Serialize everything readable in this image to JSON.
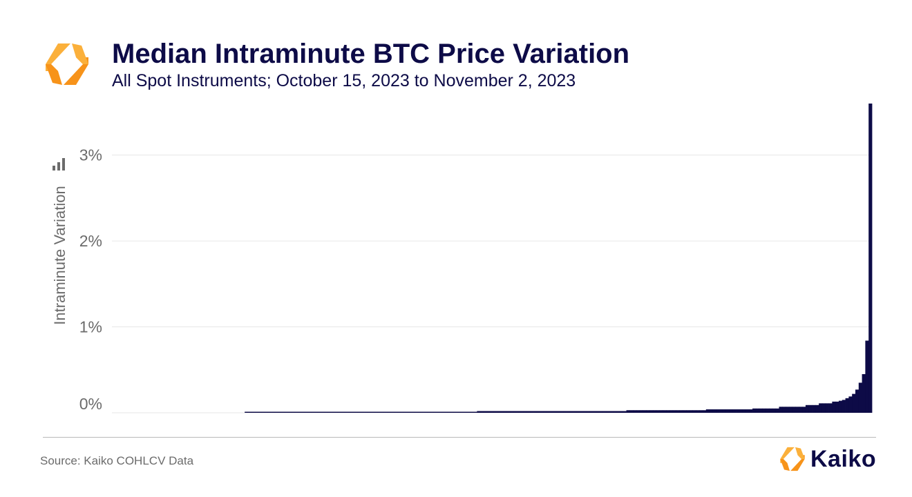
{
  "header": {
    "title": "Median Intraminute BTC Price Variation",
    "subtitle": "All Spot Instruments; October 15, 2023 to November 2, 2023"
  },
  "footer": {
    "source": "Source: Kaiko COHLCV Data",
    "brand": "Kaiko"
  },
  "icons": {
    "header_logo": "kaiko-logo-icon",
    "chart_menu": "bar-chart-icon",
    "brand_logo": "kaiko-logo-icon"
  },
  "colors": {
    "bars": "#0d0b47",
    "title": "#0d0b47",
    "logo_orange": "#f7931a",
    "logo_yellow": "#fbb03b"
  },
  "chart_data": {
    "type": "bar",
    "title": "Median Intraminute BTC Price Variation",
    "subtitle": "All Spot Instruments; October 15, 2023 to November 2, 2023",
    "xlabel": "",
    "ylabel": "Intraminute Variation",
    "ylim": [
      0,
      3.6
    ],
    "y_ticks": [
      0,
      1,
      2,
      3
    ],
    "y_tick_labels": [
      "0%",
      "1%",
      "2%",
      "3%"
    ],
    "grid": true,
    "legend": "none",
    "x_count": 220,
    "note_sorted": "values ascending across instruments",
    "values": [
      0,
      0,
      0,
      0,
      0,
      0,
      0,
      0,
      0,
      0,
      0,
      0,
      0,
      0,
      0,
      0,
      0,
      0,
      0,
      0,
      0,
      0,
      0,
      0,
      0,
      0,
      0,
      0,
      0,
      0,
      0,
      0,
      0,
      0,
      0,
      0,
      0,
      0,
      0,
      0,
      0.01,
      0.01,
      0.01,
      0.01,
      0.01,
      0.01,
      0.01,
      0.01,
      0.01,
      0.01,
      0.01,
      0.01,
      0.01,
      0.01,
      0.01,
      0.01,
      0.01,
      0.01,
      0.01,
      0.01,
      0.01,
      0.01,
      0.01,
      0.01,
      0.01,
      0.01,
      0.01,
      0.01,
      0.01,
      0.01,
      0.01,
      0.01,
      0.01,
      0.01,
      0.01,
      0.01,
      0.01,
      0.01,
      0.01,
      0.01,
      0.01,
      0.01,
      0.01,
      0.01,
      0.01,
      0.01,
      0.01,
      0.01,
      0.01,
      0.01,
      0.01,
      0.01,
      0.01,
      0.01,
      0.01,
      0.01,
      0.01,
      0.01,
      0.01,
      0.01,
      0.01,
      0.01,
      0.01,
      0.01,
      0.01,
      0.01,
      0.01,
      0.01,
      0.01,
      0.01,
      0.02,
      0.02,
      0.02,
      0.02,
      0.02,
      0.02,
      0.02,
      0.02,
      0.02,
      0.02,
      0.02,
      0.02,
      0.02,
      0.02,
      0.02,
      0.02,
      0.02,
      0.02,
      0.02,
      0.02,
      0.02,
      0.02,
      0.02,
      0.02,
      0.02,
      0.02,
      0.02,
      0.02,
      0.02,
      0.02,
      0.02,
      0.02,
      0.02,
      0.02,
      0.02,
      0.02,
      0.02,
      0.02,
      0.02,
      0.02,
      0.02,
      0.02,
      0.02,
      0.02,
      0.02,
      0.03,
      0.03,
      0.03,
      0.03,
      0.03,
      0.03,
      0.03,
      0.03,
      0.03,
      0.03,
      0.03,
      0.03,
      0.03,
      0.03,
      0.03,
      0.03,
      0.03,
      0.03,
      0.03,
      0.03,
      0.03,
      0.03,
      0.03,
      0.03,
      0.04,
      0.04,
      0.04,
      0.04,
      0.04,
      0.04,
      0.04,
      0.04,
      0.04,
      0.04,
      0.04,
      0.04,
      0.04,
      0.04,
      0.05,
      0.05,
      0.05,
      0.05,
      0.05,
      0.05,
      0.05,
      0.05,
      0.07,
      0.07,
      0.07,
      0.07,
      0.07,
      0.07,
      0.07,
      0.07,
      0.09,
      0.09,
      0.09,
      0.09,
      0.11,
      0.11,
      0.11,
      0.11,
      0.13,
      0.13,
      0.14,
      0.15,
      0.17,
      0.19,
      0.22,
      0.27,
      0.35,
      0.45,
      0.84,
      3.6
    ]
  }
}
